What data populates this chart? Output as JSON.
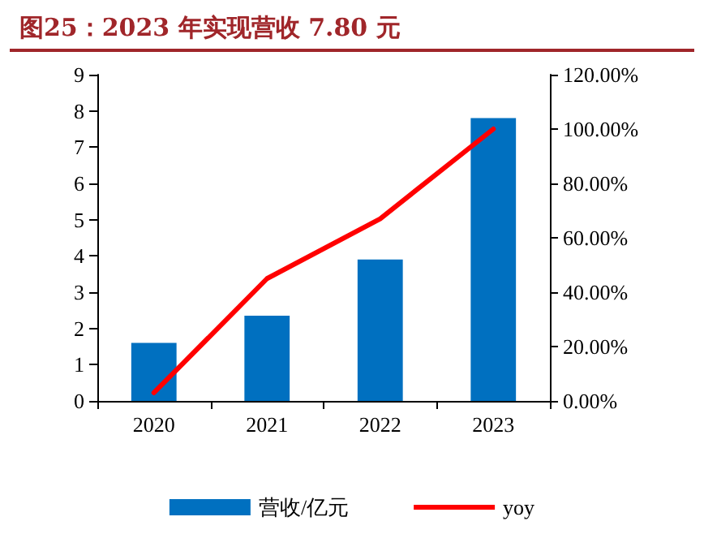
{
  "chart_data": {
    "type": "bar",
    "title": "图25：2023 年实现营收 7.80 元",
    "categories": [
      "2020",
      "2021",
      "2022",
      "2023"
    ],
    "series": [
      {
        "name": "营收/亿元",
        "color": "#0070c0",
        "values": [
          1.6,
          2.35,
          3.9,
          7.8
        ]
      },
      {
        "name": "yoy",
        "type": "line",
        "color": "#ff0000",
        "axis": "y2",
        "values": [
          3,
          45,
          67,
          100
        ]
      }
    ],
    "ylim": [
      0,
      9
    ],
    "yticks": [
      0,
      1,
      2,
      3,
      4,
      5,
      6,
      7,
      8,
      9
    ],
    "y2lim": [
      0,
      120
    ],
    "y2ticks": [
      {
        "value": 0,
        "label": "0.00%"
      },
      {
        "value": 20,
        "label": "20.00%"
      },
      {
        "value": 40,
        "label": "40.00%"
      },
      {
        "value": 60,
        "label": "60.00%"
      },
      {
        "value": 80,
        "label": "80.00%"
      },
      {
        "value": 100,
        "label": "100.00%"
      },
      {
        "value": 120,
        "label": "120.00%"
      }
    ],
    "legend": "bottom",
    "grid": false,
    "marker": "none",
    "line_style": "solid"
  }
}
